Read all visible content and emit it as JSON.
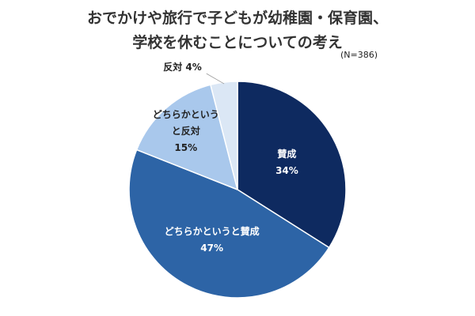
{
  "title_lines": [
    "おでかけや旅行で子どもが幼稚園・保育園、",
    "学校を休むことについての考え"
  ],
  "sample_size": "(N=386)",
  "chart_data": {
    "type": "pie",
    "title": "おでかけや旅行で子どもが幼稚園・保育園、学校を休むことについての考え",
    "sample_size": "(N=386)",
    "slices": [
      {
        "label": "賛成",
        "label_lines": [
          "賛成"
        ],
        "value": 34,
        "value_label": "34%",
        "color": "#0e2a60",
        "text_color": "#ffffff"
      },
      {
        "label": "どちらかというと賛成",
        "label_lines": [
          "どちらかというと賛成"
        ],
        "value": 47,
        "value_label": "47%",
        "color": "#2d64a6",
        "text_color": "#ffffff"
      },
      {
        "label": "どちらかというと反対",
        "label_lines": [
          "どちらかという",
          "と反対"
        ],
        "value": 15,
        "value_label": "15%",
        "color": "#a9c8ec",
        "text_color": "#222222"
      },
      {
        "label": "反対",
        "label_lines": [
          "反対"
        ],
        "value": 4,
        "value_label": "4%",
        "color": "#dbe7f5",
        "text_color": "#222222",
        "label_outside": true
      }
    ]
  }
}
